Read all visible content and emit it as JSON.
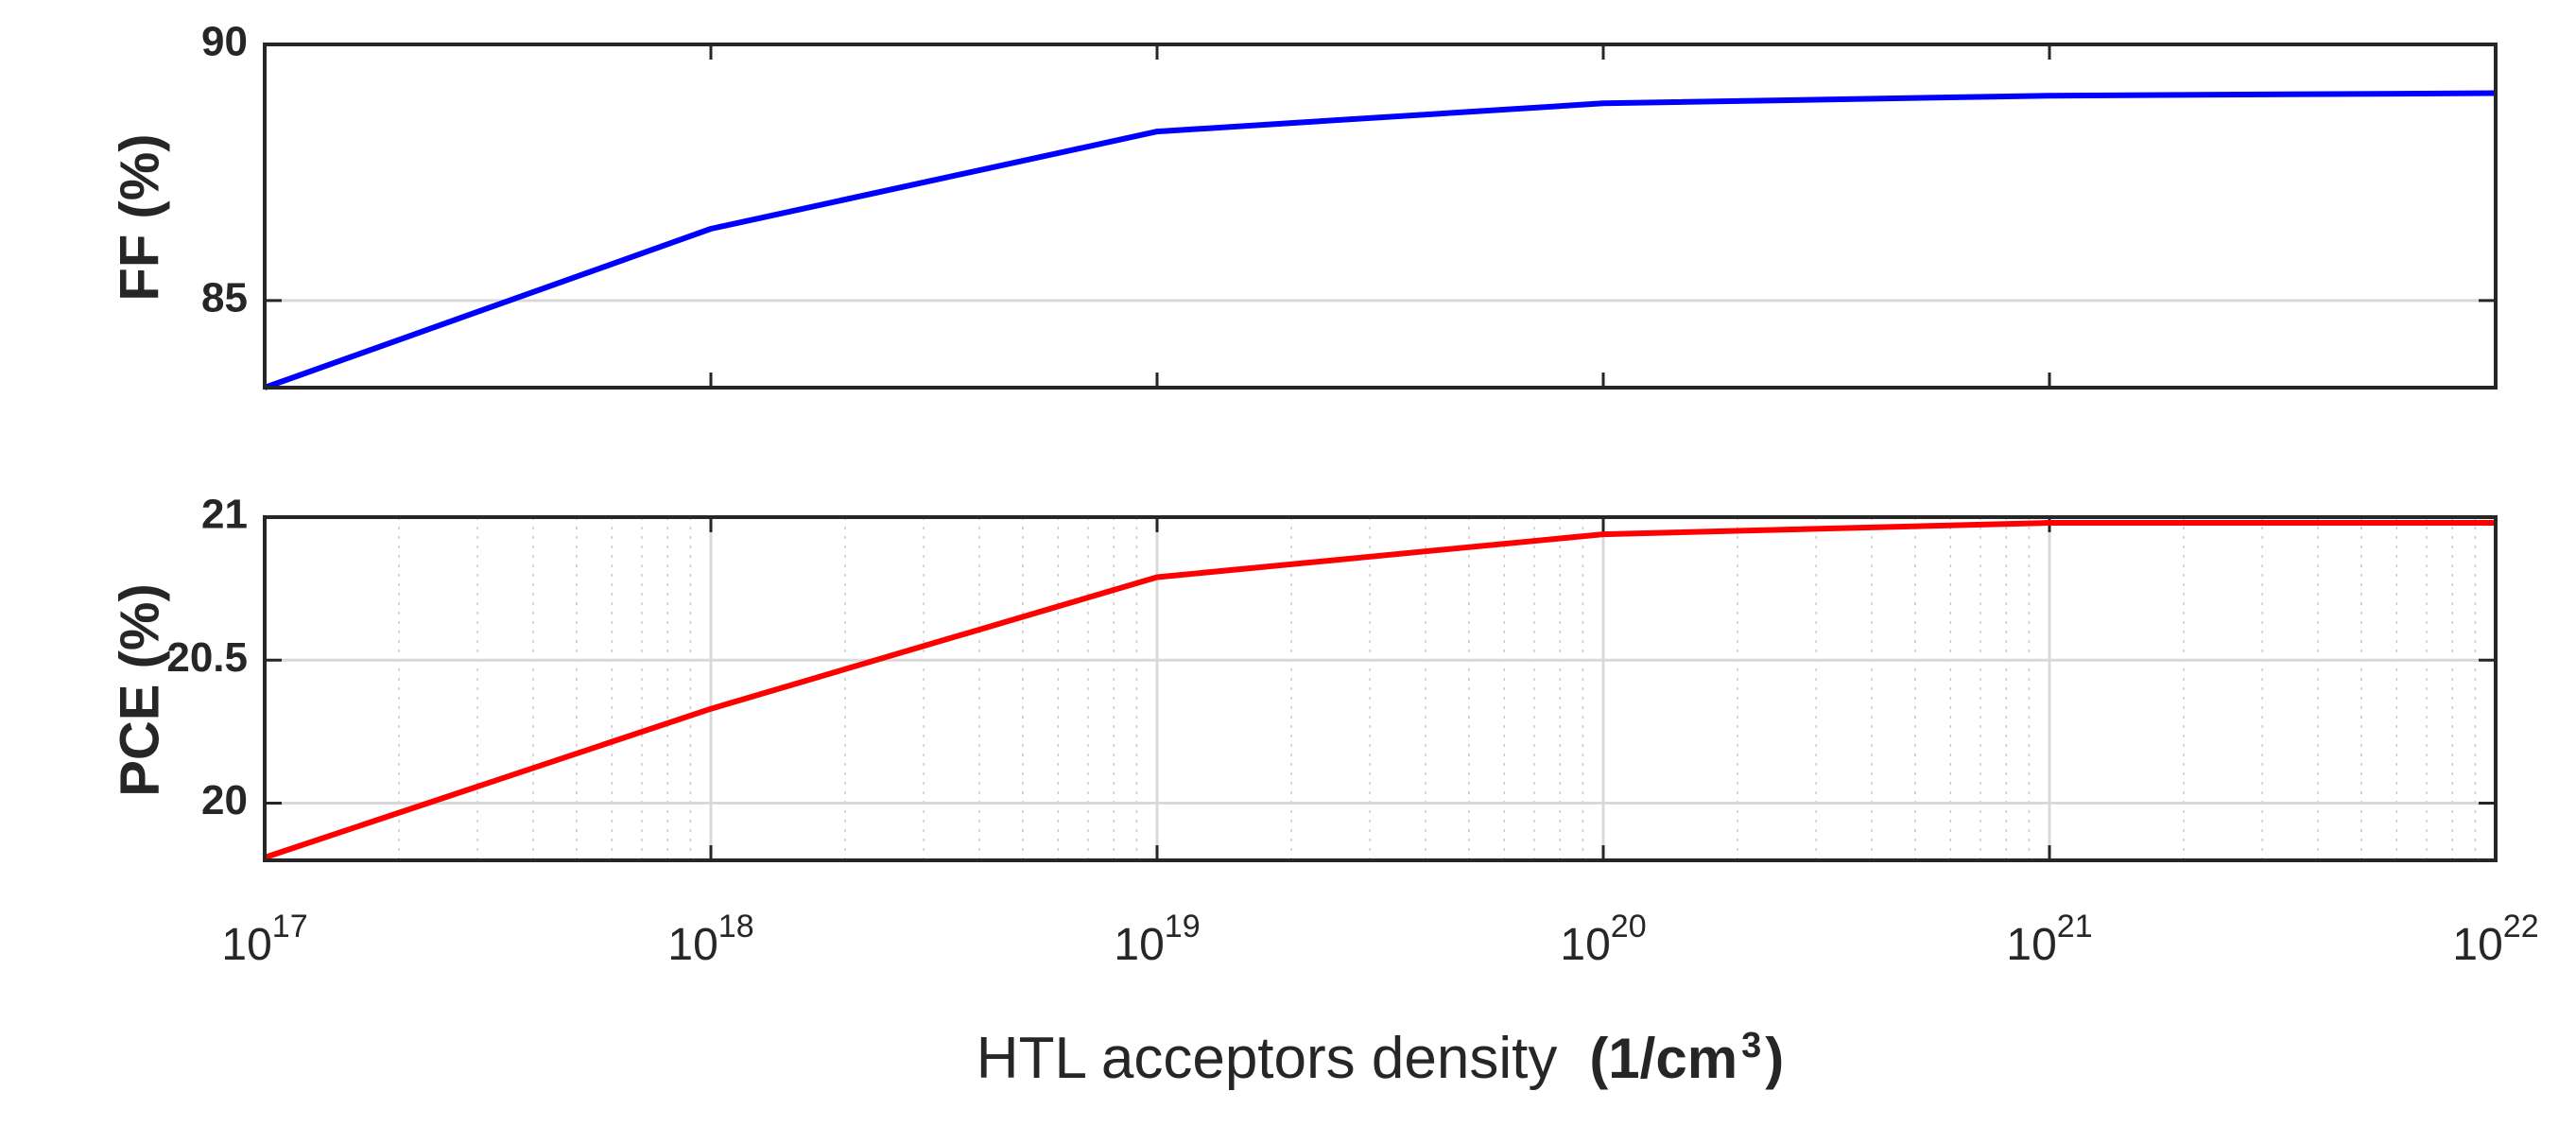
{
  "chart_data": [
    {
      "type": "line",
      "ylabel": "FF (%)",
      "xscale": "log",
      "xlim": [
        1e+17,
        1e+22
      ],
      "ylim": [
        83.3,
        90
      ],
      "yticks": [
        85,
        90
      ],
      "ytick_labels": [
        "85",
        "90"
      ],
      "grid": "major",
      "series": [
        {
          "color": "#0000ff",
          "x": [
            1e+17,
            1e+18,
            1e+19,
            1e+20,
            1e+21,
            1e+22
          ],
          "values": [
            83.3,
            86.4,
            88.3,
            88.85,
            89.0,
            89.05
          ]
        }
      ]
    },
    {
      "type": "line",
      "ylabel": "PCE (%)",
      "xscale": "log",
      "xlim": [
        1e+17,
        1e+22
      ],
      "ylim": [
        19.8,
        21
      ],
      "yticks": [
        20,
        20.5,
        21
      ],
      "ytick_labels": [
        "20",
        "20.5",
        "21"
      ],
      "xtick_base": "10",
      "xtick_exponents": [
        "17",
        "18",
        "19",
        "20",
        "21",
        "22"
      ],
      "xlabel": "HTL acceptors density",
      "xlabel_unit_prefix": "(1/cm",
      "xlabel_unit_exponent": "3",
      "xlabel_unit_suffix": ")",
      "grid": "major-and-minor",
      "series": [
        {
          "color": "#ff0000",
          "x": [
            1e+17,
            1e+18,
            1e+19,
            1e+20,
            1e+21,
            1e+22
          ],
          "values": [
            19.81,
            20.33,
            20.79,
            20.94,
            20.98,
            20.98
          ]
        }
      ]
    }
  ]
}
